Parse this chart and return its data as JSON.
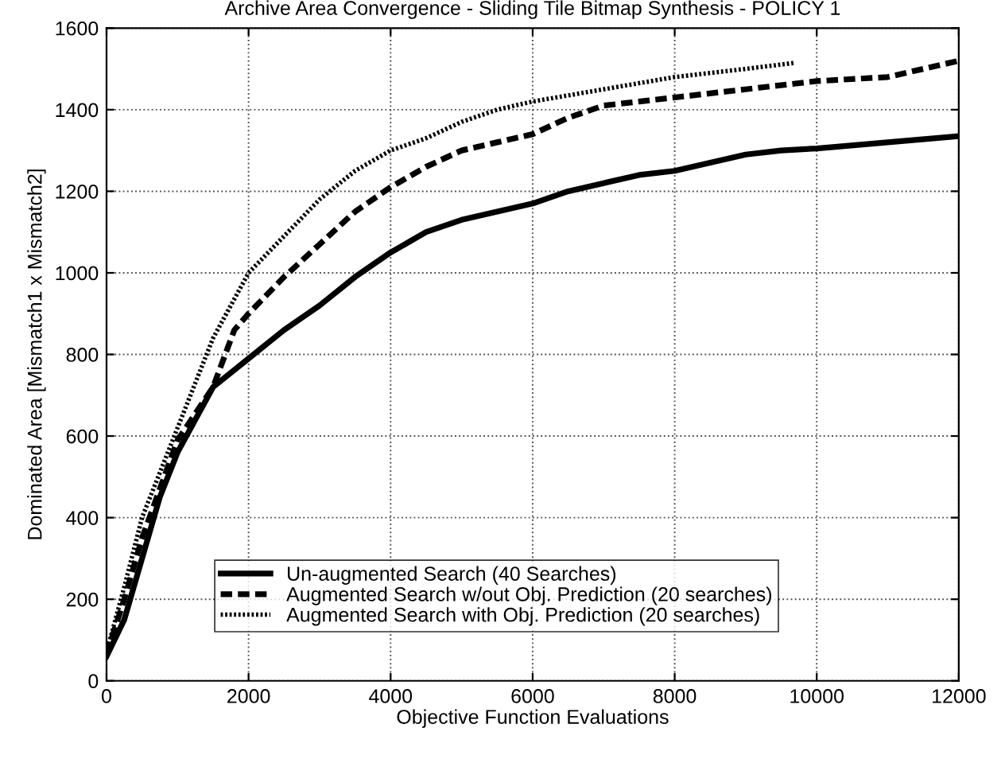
{
  "chart_data": {
    "type": "line",
    "title": "Archive Area Convergence - Sliding Tile Bitmap Synthesis - POLICY 1",
    "xlabel": "Objective Function Evaluations",
    "ylabel": "Dominated Area [Mismatch1 x Mismatch2]",
    "xlim": [
      0,
      12000
    ],
    "xticks": [
      0,
      2000,
      4000,
      6000,
      8000,
      10000,
      12000
    ],
    "ylim": [
      0,
      1600
    ],
    "yticks": [
      0,
      200,
      400,
      600,
      800,
      1000,
      1200,
      1400,
      1600
    ],
    "grid": true,
    "legend": "bottom right",
    "marker": "none",
    "series": [
      {
        "name": "Un-augmented Search (40 Searches)",
        "color": "#000000",
        "line_style": "solid",
        "x": [
          0,
          250,
          500,
          750,
          1000,
          1500,
          2000,
          2500,
          3000,
          3500,
          4000,
          4500,
          5000,
          5500,
          6000,
          6500,
          7000,
          7500,
          8000,
          8500,
          9000,
          9500,
          10000,
          11000,
          12000
        ],
        "values": [
          60,
          150,
          300,
          450,
          560,
          720,
          790,
          860,
          920,
          990,
          1050,
          1100,
          1130,
          1150,
          1170,
          1200,
          1220,
          1240,
          1250,
          1270,
          1290,
          1300,
          1305,
          1320,
          1335
        ]
      },
      {
        "name": "Augmented Search w/out Obj. Prediction (20 searches)",
        "color": "#000000",
        "line_style": "dashed",
        "x": [
          0,
          250,
          500,
          1000,
          1500,
          1800,
          2000,
          2500,
          3000,
          3500,
          4000,
          4500,
          5000,
          5500,
          6000,
          6500,
          7000,
          7500,
          8000,
          9000,
          10000,
          11000,
          11500,
          12000
        ],
        "values": [
          65,
          200,
          350,
          590,
          720,
          860,
          900,
          990,
          1070,
          1150,
          1210,
          1260,
          1300,
          1320,
          1340,
          1380,
          1410,
          1420,
          1430,
          1450,
          1470,
          1480,
          1500,
          1520
        ]
      },
      {
        "name": "Augmented Search with Obj. Prediction (20 searches)",
        "color": "#000000",
        "line_style": "dotted",
        "x": [
          0,
          250,
          500,
          1000,
          1500,
          2000,
          2500,
          3000,
          3500,
          4000,
          4500,
          5000,
          5500,
          6000,
          7000,
          8000,
          9000,
          9700
        ],
        "values": [
          70,
          230,
          400,
          620,
          840,
          1000,
          1090,
          1180,
          1250,
          1300,
          1330,
          1370,
          1400,
          1420,
          1450,
          1480,
          1500,
          1515
        ]
      }
    ]
  }
}
